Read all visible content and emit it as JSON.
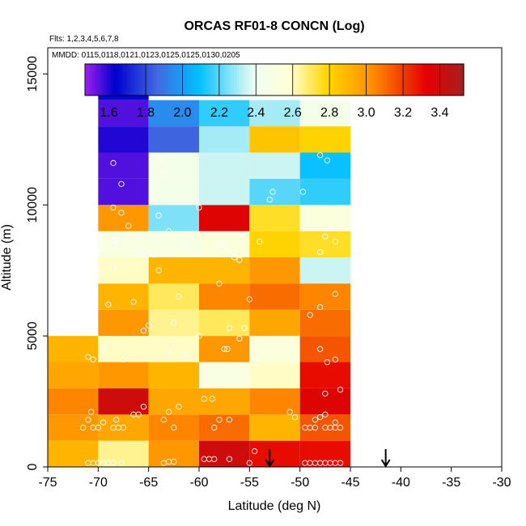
{
  "chart_data": {
    "type": "heatmap",
    "title": "ORCAS RF01-8 CONCN (Log)",
    "subtitle_flights": "Flts: 1,2,3,4,5,6,7,8",
    "subtitle_dates": "MMDD: 0115,0118,0121,0123,0125,0125,0130,0205",
    "xlabel": "Latitude (deg N)",
    "ylabel": "Altitude (m)",
    "xlim": [
      -75,
      -30
    ],
    "ylim": [
      0,
      16000
    ],
    "xticks": [
      -75,
      -70,
      -65,
      -60,
      -55,
      -50,
      -45,
      -40,
      -35,
      -30
    ],
    "yticks": [
      0,
      5000,
      10000,
      15000
    ],
    "colorbar": {
      "range": [
        1.47,
        3.53
      ],
      "ticks": [
        1.6,
        1.8,
        2.0,
        2.2,
        2.4,
        2.6,
        2.8,
        3.0,
        3.2,
        3.4
      ],
      "tick_labels": [
        "1.6",
        "1.8",
        "2.0",
        "2.2",
        "2.4",
        "2.6",
        "2.8",
        "3.0",
        "3.2",
        "3.4"
      ],
      "boundaries": [
        1.8,
        2.0,
        2.2,
        2.4,
        2.6,
        2.8,
        3.0,
        3.2,
        3.4
      ]
    },
    "bin_width_deg": 5,
    "bin_height_m": 1000,
    "columns": [
      {
        "lon_left": -75,
        "values": [
          2.9,
          3.0,
          3.05,
          2.95,
          2.9
        ]
      },
      {
        "lon_left": -70,
        "values": [
          2.65,
          2.95,
          3.4,
          3.0,
          2.6,
          3.0,
          2.9,
          2.6,
          2.5,
          3.0,
          1.55,
          1.55,
          1.6,
          1.55,
          1.65
        ]
      },
      {
        "lon_left": -65,
        "values": [
          3.0,
          3.05,
          2.95,
          2.9,
          2.6,
          2.65,
          2.7,
          2.9,
          2.5,
          2.25,
          2.45,
          2.45,
          1.85,
          1.95
        ]
      },
      {
        "lon_left": -60,
        "values": [
          3.4,
          3.1,
          2.95,
          2.5,
          3.0,
          2.7,
          3.05,
          2.9,
          2.55,
          3.35,
          2.35,
          2.35,
          2.3,
          2.15
        ]
      },
      {
        "lon_left": -55,
        "values": [
          3.3,
          2.9,
          3.05,
          2.6,
          2.55,
          2.95,
          3.1,
          3.0,
          2.8,
          2.75,
          2.2,
          2.35,
          2.85,
          2.3
        ]
      },
      {
        "lon_left": -50,
        "values": [
          3.3,
          3.15,
          3.35,
          3.3,
          3.15,
          3.1,
          3.05,
          2.35,
          2.75,
          2.55,
          2.15,
          2.1,
          2.8,
          2.45
        ]
      }
    ],
    "points": [
      [
        -71,
        150
      ],
      [
        -70.5,
        150
      ],
      [
        -70,
        150
      ],
      [
        -69.5,
        150
      ],
      [
        -69,
        150
      ],
      [
        -68.5,
        150
      ],
      [
        -67.7,
        150
      ],
      [
        -63.5,
        150
      ],
      [
        -63,
        200
      ],
      [
        -62.5,
        200
      ],
      [
        -59.5,
        300
      ],
      [
        -59,
        300
      ],
      [
        -58.5,
        300
      ],
      [
        -57,
        300
      ],
      [
        -55,
        150
      ],
      [
        -54.5,
        600
      ],
      [
        -49.5,
        150
      ],
      [
        -49,
        150
      ],
      [
        -48.5,
        150
      ],
      [
        -48,
        150
      ],
      [
        -47.5,
        150
      ],
      [
        -47,
        150
      ],
      [
        -46.5,
        150
      ],
      [
        -46,
        150
      ],
      [
        -70.5,
        1500
      ],
      [
        -70,
        1500
      ],
      [
        -69.5,
        1700
      ],
      [
        -68.5,
        1500
      ],
      [
        -68,
        1500
      ],
      [
        -67.5,
        1500
      ],
      [
        -68.2,
        1800
      ],
      [
        -71,
        1800
      ],
      [
        -71.5,
        1500
      ],
      [
        -70.7,
        2100
      ],
      [
        -66.5,
        2000
      ],
      [
        -66,
        2000
      ],
      [
        -65.5,
        2300
      ],
      [
        -62.5,
        1500
      ],
      [
        -63,
        2100
      ],
      [
        -62,
        2300
      ],
      [
        -63.5,
        1800
      ],
      [
        -58.5,
        1500
      ],
      [
        -58,
        1800
      ],
      [
        -57,
        1800
      ],
      [
        -51,
        2100
      ],
      [
        -50.5,
        1900
      ],
      [
        -49.5,
        1500
      ],
      [
        -49,
        1500
      ],
      [
        -48.5,
        1500
      ],
      [
        -47.5,
        1500
      ],
      [
        -47,
        1500
      ],
      [
        -46.5,
        1500
      ],
      [
        -46,
        1500
      ],
      [
        -48.5,
        1800
      ],
      [
        -48,
        1900
      ],
      [
        -47.5,
        2000
      ],
      [
        -46.5,
        1700
      ],
      [
        -47.5,
        2800
      ],
      [
        -46,
        2950
      ],
      [
        -59.5,
        2600
      ],
      [
        -58.7,
        2600
      ],
      [
        -71,
        4200
      ],
      [
        -70.5,
        4100
      ],
      [
        -69.5,
        4500
      ],
      [
        -67.5,
        4100
      ],
      [
        -63,
        4400
      ],
      [
        -61.5,
        4300
      ],
      [
        -57.5,
        4500
      ],
      [
        -57.2,
        4500
      ],
      [
        -54.3,
        4000
      ],
      [
        -47.3,
        4000
      ],
      [
        -46.5,
        4100
      ],
      [
        -48,
        4500
      ],
      [
        -65.5,
        5200
      ],
      [
        -60,
        5000
      ],
      [
        -56,
        4900
      ],
      [
        -55.5,
        5300
      ],
      [
        -65,
        5400
      ],
      [
        -62.5,
        5500
      ],
      [
        -57,
        5300
      ],
      [
        -69,
        6200
      ],
      [
        -66.5,
        6300
      ],
      [
        -62,
        6500
      ],
      [
        -55,
        6400
      ],
      [
        -49,
        5800
      ],
      [
        -48,
        6100
      ],
      [
        -46.5,
        6600
      ],
      [
        -71.2,
        7100
      ],
      [
        -70.5,
        7200
      ],
      [
        -69.8,
        7400
      ],
      [
        -68.5,
        7600
      ],
      [
        -64,
        7500
      ],
      [
        -58,
        7000
      ],
      [
        -56.5,
        8000
      ],
      [
        -65.5,
        8200
      ],
      [
        -64.5,
        8100
      ],
      [
        -61.5,
        8500
      ],
      [
        -58,
        8500
      ],
      [
        -57.5,
        8500
      ],
      [
        -56,
        7900
      ],
      [
        -54,
        8600
      ],
      [
        -48,
        8200
      ],
      [
        -47.5,
        8800
      ],
      [
        -46.5,
        8600
      ],
      [
        -68.5,
        8600
      ],
      [
        -68.2,
        8600
      ],
      [
        -67,
        9200
      ],
      [
        -64,
        9600
      ],
      [
        -63,
        9000
      ],
      [
        -47,
        9100
      ],
      [
        -68.5,
        9900
      ],
      [
        -67.7,
        9700
      ],
      [
        -60,
        9900
      ],
      [
        -53,
        10200
      ],
      [
        -52.7,
        10500
      ],
      [
        -49.7,
        10500
      ],
      [
        -67.7,
        10800
      ],
      [
        -63.5,
        11200
      ],
      [
        -63.7,
        11700
      ],
      [
        -68.5,
        11600
      ],
      [
        -47.3,
        11700
      ],
      [
        -48,
        11900
      ]
    ],
    "arrows_lat": [
      -53,
      -41.5
    ]
  }
}
